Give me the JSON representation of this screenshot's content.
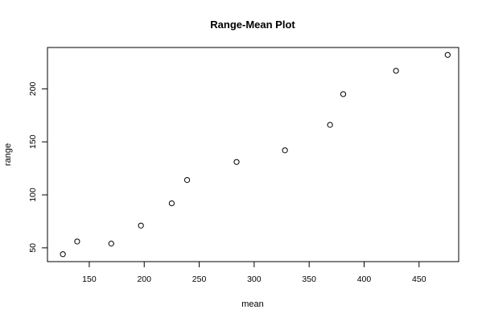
{
  "chart_data": {
    "type": "scatter",
    "title": "Range-Mean Plot",
    "xlabel": "mean",
    "ylabel": "range",
    "x_ticks": [
      150,
      200,
      250,
      300,
      350,
      400,
      450
    ],
    "y_ticks": [
      50,
      100,
      150,
      200
    ],
    "xlim": [
      112,
      486
    ],
    "ylim": [
      37,
      239
    ],
    "grid": false,
    "points": [
      {
        "x": 126,
        "y": 44
      },
      {
        "x": 139,
        "y": 56
      },
      {
        "x": 170,
        "y": 54
      },
      {
        "x": 197,
        "y": 71
      },
      {
        "x": 225,
        "y": 92
      },
      {
        "x": 239,
        "y": 114
      },
      {
        "x": 284,
        "y": 131
      },
      {
        "x": 328,
        "y": 142
      },
      {
        "x": 369,
        "y": 166
      },
      {
        "x": 381,
        "y": 195
      },
      {
        "x": 429,
        "y": 217
      },
      {
        "x": 476,
        "y": 232
      }
    ]
  }
}
